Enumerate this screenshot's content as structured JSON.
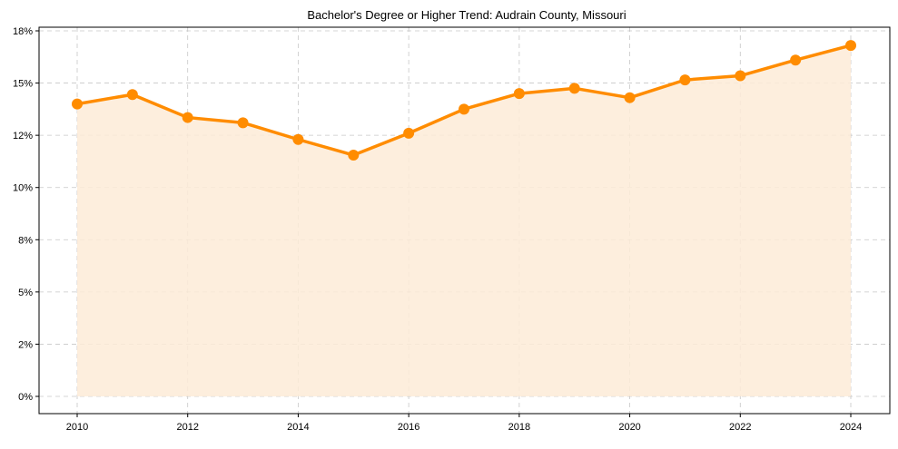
{
  "chart_data": {
    "type": "line",
    "title": "Bachelor's Degree or Higher Trend: Audrain County, Missouri",
    "xlabel": "",
    "ylabel": "",
    "x": [
      2010,
      2011,
      2012,
      2013,
      2014,
      2015,
      2016,
      2017,
      2018,
      2019,
      2020,
      2021,
      2022,
      2023,
      2024
    ],
    "series": [
      {
        "name": "Bachelor's Degree or Higher (%)",
        "values": [
          14.0,
          14.45,
          13.35,
          13.1,
          12.3,
          11.55,
          12.6,
          13.75,
          14.5,
          14.75,
          14.3,
          15.15,
          15.35,
          16.1,
          16.8
        ],
        "color": "#FF8C00",
        "fill": "#FDEBD7"
      }
    ],
    "xticks": [
      2010,
      2012,
      2014,
      2016,
      2018,
      2020,
      2022,
      2024
    ],
    "yticks": [
      0,
      2.5,
      5,
      7.5,
      10,
      12.5,
      15,
      17.5
    ],
    "ytick_labels": [
      "0%",
      "2%",
      "5%",
      "8%",
      "10%",
      "12%",
      "15%",
      "18%"
    ],
    "xlim": [
      2009.3,
      2024.7
    ],
    "ylim": [
      -0.8,
      17.9
    ],
    "grid": true,
    "legend": null
  }
}
